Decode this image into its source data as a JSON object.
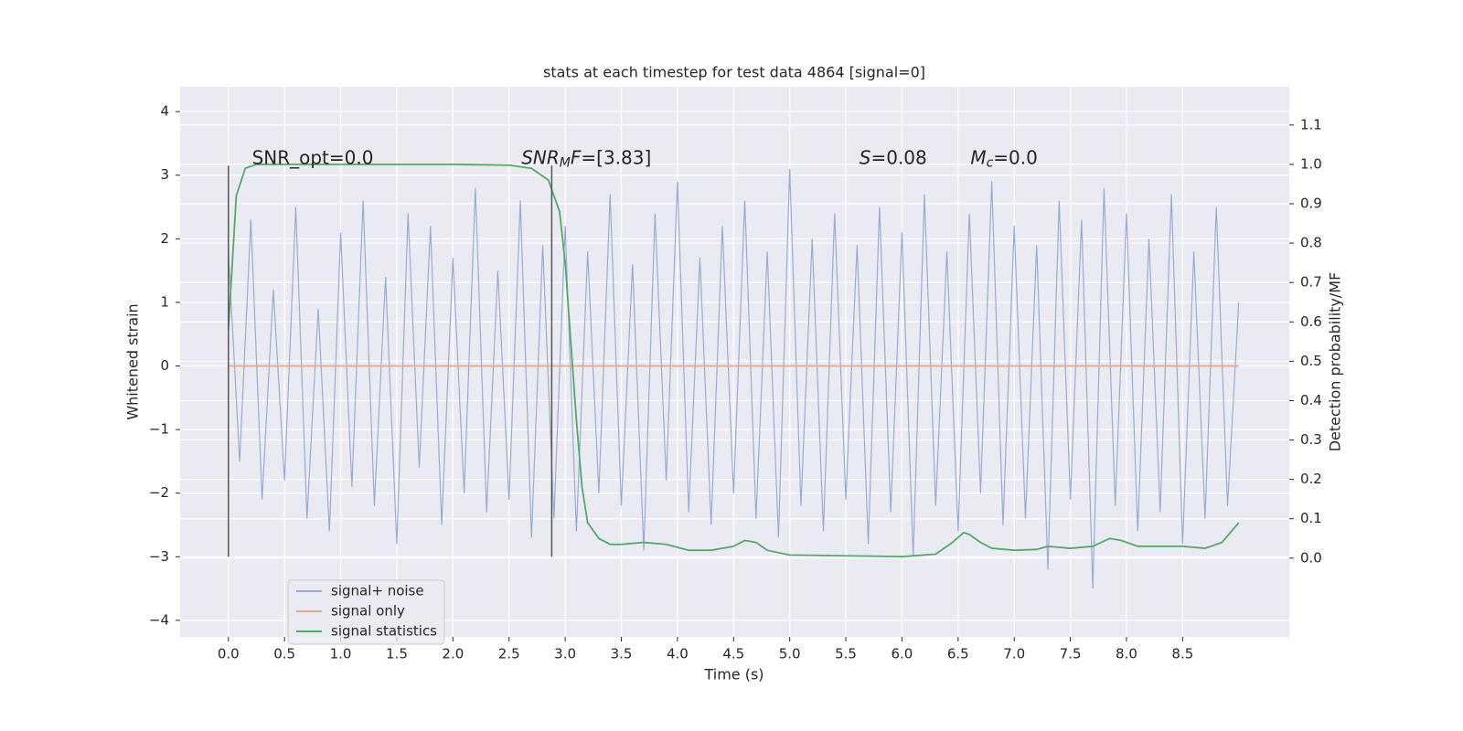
{
  "chart_data": {
    "type": "line",
    "title": "stats at each timestep for test data 4864 [signal=0]",
    "xlabel": "Time (s)",
    "ylabel": "Whitened strain",
    "y2label": "Detection probability/MF",
    "xlim": [
      -0.43,
      9.45
    ],
    "ylim": [
      -4.26,
      4.39
    ],
    "y2lim": [
      -0.2,
      1.197
    ],
    "xticks": [
      {
        "value": 0,
        "label": "0.0"
      },
      {
        "value": 0.5,
        "label": "0.5"
      },
      {
        "value": 1,
        "label": "1.0"
      },
      {
        "value": 1.5,
        "label": "1.5"
      },
      {
        "value": 2,
        "label": "2.0"
      },
      {
        "value": 2.5,
        "label": "2.5"
      },
      {
        "value": 3,
        "label": "3.0"
      },
      {
        "value": 3.5,
        "label": "3.5"
      },
      {
        "value": 4,
        "label": "4.0"
      },
      {
        "value": 4.5,
        "label": "4.5"
      },
      {
        "value": 5,
        "label": "5.0"
      },
      {
        "value": 5.5,
        "label": "5.5"
      },
      {
        "value": 6,
        "label": "6.0"
      },
      {
        "value": 6.5,
        "label": "6.5"
      },
      {
        "value": 7,
        "label": "7.0"
      },
      {
        "value": 7.5,
        "label": "7.5"
      },
      {
        "value": 8,
        "label": "8.0"
      },
      {
        "value": 8.5,
        "label": "8.5"
      }
    ],
    "yticks": [
      {
        "value": -4,
        "label": "−4"
      },
      {
        "value": -3,
        "label": "−3"
      },
      {
        "value": -2,
        "label": "−2"
      },
      {
        "value": -1,
        "label": "−1"
      },
      0,
      1,
      2,
      3,
      4
    ],
    "y2ticks": [
      {
        "value": 0,
        "label": "0.0"
      },
      {
        "value": 0.1,
        "label": "0.1"
      },
      {
        "value": 0.2,
        "label": "0.2"
      },
      {
        "value": 0.3,
        "label": "0.3"
      },
      {
        "value": 0.4,
        "label": "0.4"
      },
      {
        "value": 0.5,
        "label": "0.5"
      },
      {
        "value": 0.6,
        "label": "0.6"
      },
      {
        "value": 0.7,
        "label": "0.7"
      },
      {
        "value": 0.8,
        "label": "0.8"
      },
      {
        "value": 0.9,
        "label": "0.9"
      },
      {
        "value": 1,
        "label": "1.0"
      },
      {
        "value": 1.1,
        "label": "1.1"
      }
    ],
    "grid": true,
    "legend": "lower left",
    "series": [
      {
        "name": "signal+ noise",
        "color": "#9aabd2",
        "x": [
          0,
          0.1,
          0.2,
          0.3,
          0.4,
          0.5,
          0.6,
          0.7,
          0.8,
          0.9,
          1,
          1.1,
          1.2,
          1.3,
          1.4,
          1.5,
          1.6,
          1.7,
          1.8,
          1.9,
          2,
          2.1,
          2.2,
          2.3,
          2.4,
          2.5,
          2.6,
          2.7,
          2.8,
          2.9,
          3,
          3.1,
          3.2,
          3.3,
          3.4,
          3.5,
          3.6,
          3.7,
          3.8,
          3.9,
          4,
          4.1,
          4.2,
          4.3,
          4.4,
          4.5,
          4.6,
          4.7,
          4.8,
          4.9,
          5,
          5.1,
          5.2,
          5.3,
          5.4,
          5.5,
          5.6,
          5.7,
          5.8,
          5.9,
          6,
          6.1,
          6.2,
          6.3,
          6.4,
          6.5,
          6.6,
          6.7,
          6.8,
          6.9,
          7,
          7.1,
          7.2,
          7.3,
          7.4,
          7.5,
          7.6,
          7.7,
          7.8,
          7.9,
          8,
          8.1,
          8.2,
          8.3,
          8.4,
          8.5,
          8.6,
          8.7,
          8.8,
          8.9,
          9
        ],
        "values": [
          1.8,
          -1.5,
          2.3,
          -2.1,
          1.2,
          -1.8,
          2.5,
          -2.4,
          0.9,
          -2.6,
          2.1,
          -1.9,
          2.6,
          -2.2,
          1.4,
          -2.8,
          2.4,
          -1.6,
          2.2,
          -2.5,
          1.7,
          -2.0,
          2.8,
          -2.3,
          1.5,
          -2.1,
          2.6,
          -2.7,
          1.9,
          -2.4,
          2.2,
          -2.6,
          1.8,
          -2.0,
          2.7,
          -2.2,
          1.6,
          -2.9,
          2.4,
          -1.8,
          2.9,
          -2.3,
          1.7,
          -2.5,
          2.2,
          -2.0,
          2.6,
          -2.4,
          1.8,
          -2.7,
          3.1,
          -2.2,
          2.0,
          -2.6,
          2.4,
          -2.1,
          1.9,
          -2.8,
          2.5,
          -2.3,
          2.1,
          -3.0,
          2.7,
          -2.2,
          1.8,
          -2.6,
          2.4,
          -2.0,
          2.9,
          -2.5,
          2.2,
          -2.4,
          1.9,
          -3.2,
          2.6,
          -2.1,
          2.3,
          -3.5,
          2.8,
          -2.2,
          2.4,
          -2.6,
          2.0,
          -2.3,
          2.7,
          -2.8,
          1.8,
          -2.4,
          2.5,
          -2.2,
          1.0
        ]
      },
      {
        "name": "signal only",
        "color": "#e5a88f",
        "x": [
          0,
          9
        ],
        "values": [
          0,
          0
        ]
      },
      {
        "name": "signal statistics",
        "color": "#55a868",
        "axis": "y2",
        "x": [
          0,
          0.07,
          0.15,
          0.25,
          0.5,
          1,
          1.5,
          2,
          2.5,
          2.7,
          2.85,
          2.95,
          3,
          3.05,
          3.1,
          3.15,
          3.2,
          3.3,
          3.4,
          3.5,
          3.7,
          3.9,
          4.1,
          4.3,
          4.5,
          4.6,
          4.7,
          4.8,
          5,
          5.5,
          6,
          6.3,
          6.45,
          6.55,
          6.6,
          6.7,
          6.8,
          7,
          7.2,
          7.3,
          7.5,
          7.7,
          7.85,
          7.95,
          8.1,
          8.3,
          8.5,
          8.7,
          8.85,
          9
        ],
        "values": [
          0.58,
          0.92,
          0.99,
          1.0,
          1.0,
          1.0,
          1.0,
          1.0,
          0.998,
          0.99,
          0.96,
          0.88,
          0.75,
          0.55,
          0.35,
          0.18,
          0.09,
          0.05,
          0.035,
          0.035,
          0.04,
          0.035,
          0.02,
          0.02,
          0.03,
          0.045,
          0.04,
          0.02,
          0.008,
          0.006,
          0.004,
          0.01,
          0.04,
          0.065,
          0.06,
          0.04,
          0.025,
          0.02,
          0.022,
          0.03,
          0.025,
          0.03,
          0.05,
          0.045,
          0.03,
          0.03,
          0.03,
          0.025,
          0.04,
          0.09
        ]
      }
    ],
    "vlines": [
      0,
      2.88
    ],
    "vline_ylim": [
      -3.0,
      3.15
    ],
    "annotations": [
      {
        "x": 0.21,
        "y": 3.26,
        "parts": [
          {
            "text": "SNR_opt=0.0"
          }
        ]
      },
      {
        "x": 2.61,
        "y": 3.26,
        "parts": [
          {
            "text": "SNR",
            "style": "italic"
          },
          {
            "text": "M",
            "style": "sub"
          },
          {
            "text": "F",
            "style": "italic"
          },
          {
            "text": "=[3.83]"
          }
        ]
      },
      {
        "x": 5.62,
        "y": 3.26,
        "parts": [
          {
            "text": "S",
            "style": "italic"
          },
          {
            "text": "=0.08"
          }
        ]
      },
      {
        "x": 6.61,
        "y": 3.26,
        "parts": [
          {
            "text": "M",
            "style": "italic"
          },
          {
            "text": "c",
            "style": "sub"
          },
          {
            "text": "=0.0"
          }
        ]
      }
    ]
  }
}
